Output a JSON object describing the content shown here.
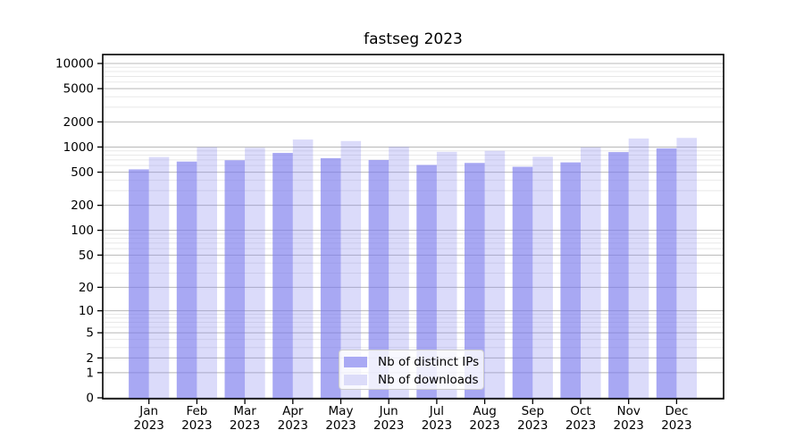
{
  "figure": {
    "background": "#ffffff"
  },
  "chart_data": {
    "type": "bar",
    "title": "fastseg 2023",
    "categories": [
      "Jan",
      "Feb",
      "Mar",
      "Apr",
      "May",
      "Jun",
      "Jul",
      "Aug",
      "Sep",
      "Oct",
      "Nov",
      "Dec"
    ],
    "category_year": "2023",
    "series": [
      {
        "name": "Nb of distinct IPs",
        "color": "#7a7aec",
        "fill_opacity": 0.65,
        "swatch_color": "#a9a9f4",
        "values": [
          540,
          670,
          695,
          850,
          735,
          700,
          610,
          645,
          580,
          655,
          870,
          965
        ]
      },
      {
        "name": "Nb of downloads",
        "color": "#8787ee",
        "fill_opacity": 0.3,
        "swatch_color": "#dcdcf9",
        "values": [
          760,
          995,
          980,
          1230,
          1180,
          1005,
          875,
          900,
          765,
          990,
          1265,
          1285
        ]
      }
    ],
    "y_axis": {
      "scale": "log1p",
      "ticks": [
        10000,
        5000,
        2000,
        1000,
        500,
        200,
        100,
        50,
        20,
        10,
        5,
        2,
        1,
        0
      ],
      "minor_mantissas": [
        3,
        4,
        6,
        7,
        8,
        9
      ],
      "range_max": 13000
    },
    "grid": {
      "major_color": "#b8b8b8",
      "minor_color": "#e8e8e8"
    },
    "axis_color": "#000000",
    "legend_position": "lower-center"
  }
}
